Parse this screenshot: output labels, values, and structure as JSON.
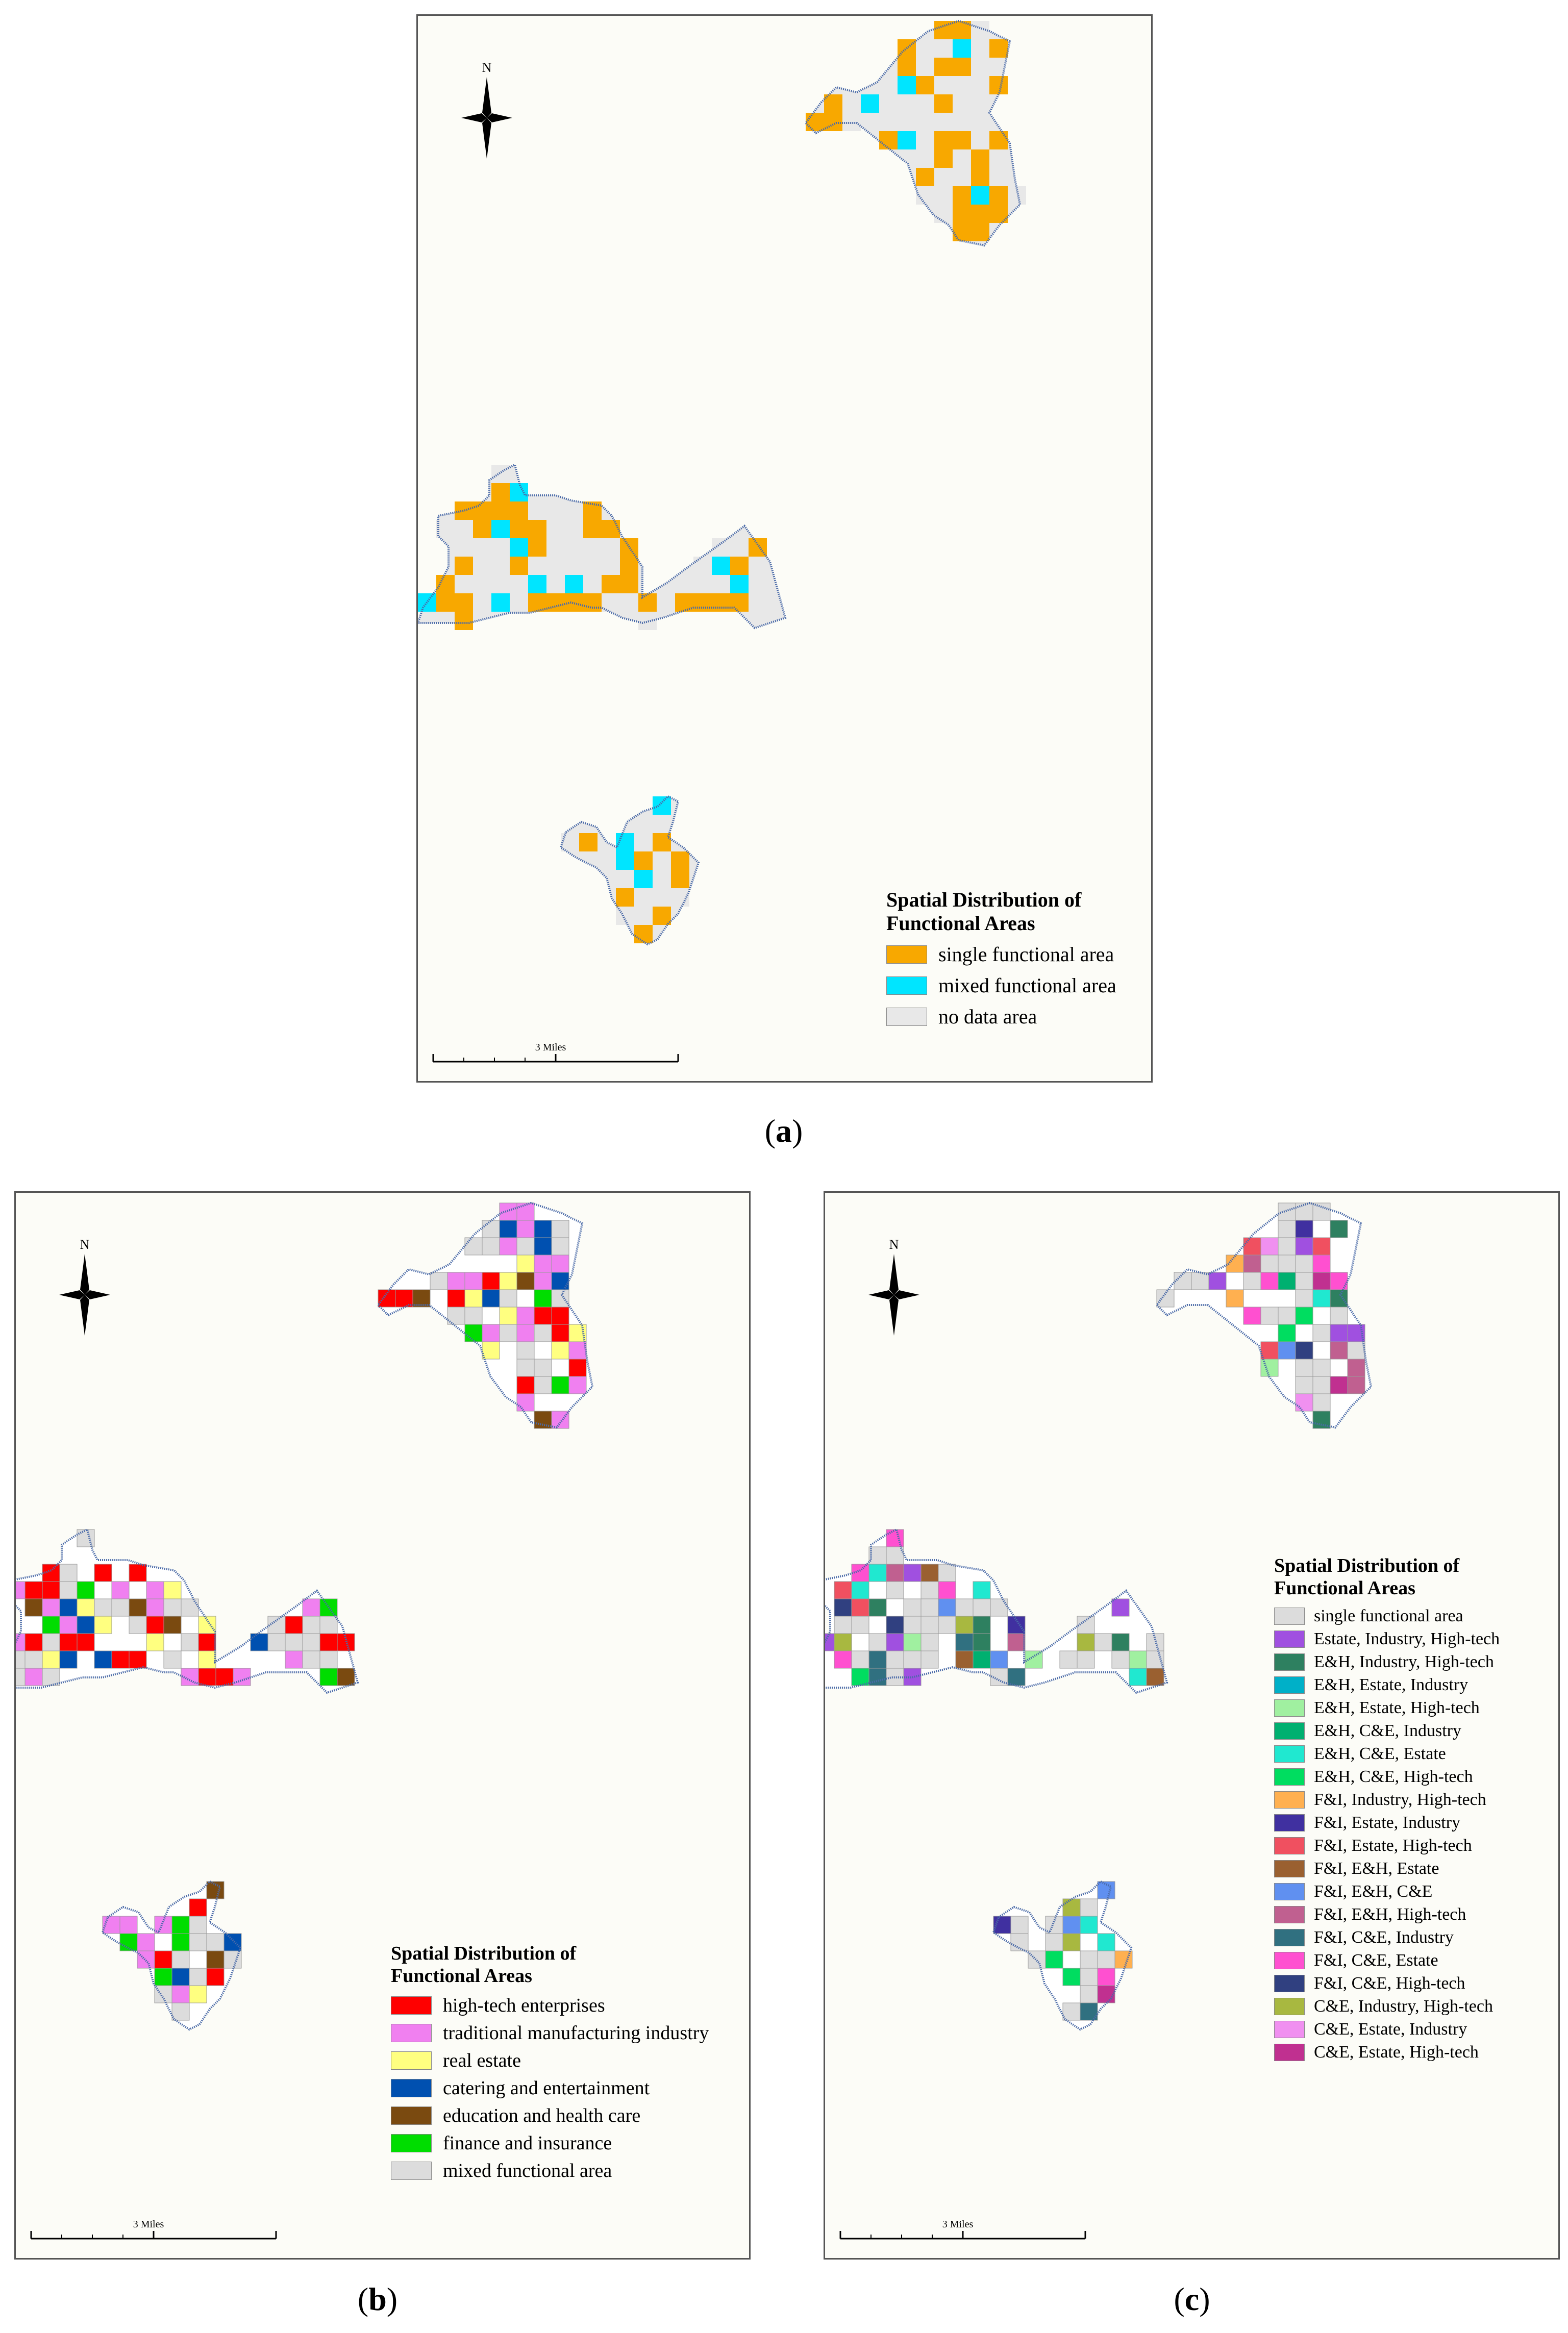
{
  "panels": [
    {
      "id": "a",
      "caption": "a",
      "legend_title_line1": "Spatial Distribution of",
      "legend_title_line2": "Functional Areas",
      "compass_label": "N",
      "scale_label": "3 Miles",
      "legend": [
        {
          "label": "single functional area",
          "color": "#F8A800"
        },
        {
          "label": "mixed functional area",
          "color": "#00E5FF"
        },
        {
          "label": "no data area",
          "color": "#E8E8E8"
        }
      ]
    },
    {
      "id": "b",
      "caption": "b",
      "legend_title_line1": "Spatial Distribution of",
      "legend_title_line2": "Functional Areas",
      "compass_label": "N",
      "scale_label": "3 Miles",
      "legend": [
        {
          "label": "high-tech enterprises",
          "color": "#FF0000"
        },
        {
          "label": "traditional manufacturing industry",
          "color": "#F080F0"
        },
        {
          "label": "real estate",
          "color": "#FFFF80"
        },
        {
          "label": "catering and entertainment",
          "color": "#0050B0"
        },
        {
          "label": "education and health care",
          "color": "#7A4A10"
        },
        {
          "label": "finance and insurance",
          "color": "#00DD00"
        },
        {
          "label": "mixed functional area",
          "color": "#DCDCDC"
        }
      ]
    },
    {
      "id": "c",
      "caption": "c",
      "legend_title_line1": "Spatial Distribution of",
      "legend_title_line2": "Functional Areas",
      "compass_label": "N",
      "scale_label": "3 Miles",
      "legend": [
        {
          "label": "single functional area",
          "color": "#DCDCDC"
        },
        {
          "label": "Estate, Industry, High-tech",
          "color": "#A050E0"
        },
        {
          "label": "E&H, Industry, High-tech",
          "color": "#2E8060"
        },
        {
          "label": "E&H, Estate, Industry",
          "color": "#00B0C8"
        },
        {
          "label": "E&H, Estate, High-tech",
          "color": "#A0F0A0"
        },
        {
          "label": "E&H, C&E, Industry",
          "color": "#00B070"
        },
        {
          "label": "E&H, C&E, Estate",
          "color": "#20E8D0"
        },
        {
          "label": "E&H, C&E, High-tech",
          "color": "#00DD60"
        },
        {
          "label": "F&I, Industry, High-tech",
          "color": "#FFB050"
        },
        {
          "label": "F&I, Estate, Industry",
          "color": "#4030A0"
        },
        {
          "label": "F&I, Estate, High-tech",
          "color": "#F05060"
        },
        {
          "label": "F&I, E&H, Estate",
          "color": "#9A6030"
        },
        {
          "label": "F&I, E&H, C&E",
          "color": "#6090F0"
        },
        {
          "label": "F&I, E&H, High-tech",
          "color": "#C06090"
        },
        {
          "label": "F&I, C&E, Industry",
          "color": "#307080"
        },
        {
          "label": "F&I, C&E, Estate",
          "color": "#FF50D0"
        },
        {
          "label": "F&I, C&E, High-tech",
          "color": "#304080"
        },
        {
          "label": "C&E, Industry, High-tech",
          "color": "#A8B840"
        },
        {
          "label": "C&E, Estate, Industry",
          "color": "#F090F0"
        },
        {
          "label": "C&E, Estate, High-tech",
          "color": "#C03090"
        }
      ]
    }
  ]
}
